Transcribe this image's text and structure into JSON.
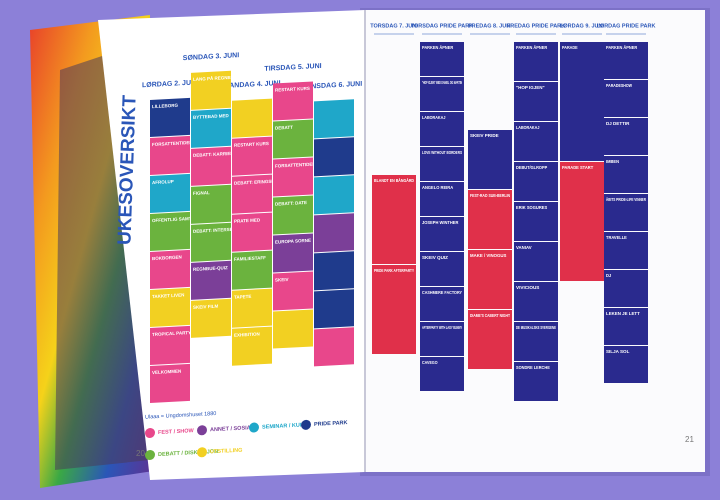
{
  "left": {
    "title": "UKESOVERSIKT",
    "page": "20",
    "days": [
      "LØRDAG 2. JUNI",
      "SØNDAG 3. JUNI",
      "MANDAG 4. JUNI",
      "TIRSDAG 5. JUNI",
      "ONSDAG 6. JUNI"
    ],
    "columns": [
      [
        {
          "label": "LILLEBORG",
          "color": "#1f3b8c"
        },
        {
          "label": "FORSATTENTIDER",
          "color": "#e8478b"
        },
        {
          "label": "AFROLUP",
          "color": "#1fa7c9"
        },
        {
          "label": "OFFENTLIG SAMTALE",
          "color": "#6bb33e"
        },
        {
          "label": "BOKBORGEN",
          "color": "#e8478b"
        },
        {
          "label": "TAKKET LIVEN",
          "color": "#f2d022"
        },
        {
          "label": "TROPICAL PARTY",
          "color": "#e8478b"
        },
        {
          "label": "VELKOMMEN",
          "color": "#e8478b"
        }
      ],
      [
        {
          "label": "LANG PÅ REGNBUEN",
          "color": "#f2d022"
        },
        {
          "label": "BYTTEBAD MED",
          "color": "#1fa7c9"
        },
        {
          "label": "DEBATT: KARRIERE",
          "color": "#e8478b"
        },
        {
          "label": "FIGNAL",
          "color": "#6bb33e"
        },
        {
          "label": "DEBATT: INTERSEX",
          "color": "#6bb33e"
        },
        {
          "label": "REGNBUE-QUIZ",
          "color": "#7b3f98"
        },
        {
          "label": "SKEIV FILM",
          "color": "#f2d022"
        }
      ],
      [
        {
          "label": "",
          "color": "#f2d022"
        },
        {
          "label": "RESTART KURS",
          "color": "#e8478b"
        },
        {
          "label": "DEBATT: ERINGSLIV",
          "color": "#e8478b"
        },
        {
          "label": "PRATE MED",
          "color": "#e8478b"
        },
        {
          "label": "FAMILIESTAFF",
          "color": "#6bb33e"
        },
        {
          "label": "TAPETE",
          "color": "#f2d022"
        },
        {
          "label": "EXHIBITION",
          "color": "#f2d022"
        }
      ],
      [
        {
          "label": "RESTART KURS",
          "color": "#e8478b"
        },
        {
          "label": "DEBATT",
          "color": "#6bb33e"
        },
        {
          "label": "FORSATTENTIDER",
          "color": "#e8478b"
        },
        {
          "label": "DEBATT: DATE",
          "color": "#6bb33e"
        },
        {
          "label": "EUROPA SORNE",
          "color": "#7b3f98"
        },
        {
          "label": "SKEIV",
          "color": "#e8478b"
        },
        {
          "label": "",
          "color": "#f2d022"
        }
      ],
      [
        {
          "label": "",
          "color": "#1fa7c9"
        },
        {
          "label": "",
          "color": "#1f3b8c"
        },
        {
          "label": "",
          "color": "#1fa7c9"
        },
        {
          "label": "",
          "color": "#7b3f98"
        },
        {
          "label": "",
          "color": "#1f3b8c"
        },
        {
          "label": "",
          "color": "#1f3b8c"
        },
        {
          "label": "",
          "color": "#e8478b"
        }
      ]
    ],
    "legend_note": "Ulaaa = Ungdomshuset 1880",
    "legend": [
      {
        "label": "FEST / SHOW",
        "color": "#e8478b"
      },
      {
        "label": "ANNET / SOSIALT",
        "color": "#7b3f98"
      },
      {
        "label": "SEMINAR / KURS",
        "color": "#1fa7c9"
      },
      {
        "label": "PRIDE PARK",
        "color": "#1f3b8c"
      },
      {
        "label": "DEBATT / DISKUS JON",
        "color": "#6bb33e"
      },
      {
        "label": "UTSTILLING",
        "color": "#f2d022"
      }
    ]
  },
  "right": {
    "page": "21",
    "columns": [
      {
        "day": "TORSDAG 7. JUNI",
        "events": [
          {
            "label": "BLANDT EN BÅNGÅRD",
            "color": "#e0304a"
          },
          {
            "label": "PRIDE PARK AFTERPARTY",
            "color": "#e0304a"
          }
        ]
      },
      {
        "day": "TORSDAG PRIDE PARK",
        "events": [
          {
            "label": "PARKEN ÅPNER",
            "color": "#2a2a8e"
          },
          {
            "label": "\"HOP IGJEN\" MED DANIEL OG MARTIN",
            "color": "#2a2a8e"
          },
          {
            "label": "LABORAKAJ",
            "color": "#2a2a8e"
          },
          {
            "label": "LOVE WITHOUT BORDERS",
            "color": "#2a2a8e"
          },
          {
            "label": "ANGELO REIRA",
            "color": "#2a2a8e"
          },
          {
            "label": "JOSEPH WINTHER",
            "color": "#2a2a8e"
          },
          {
            "label": "SKEIV QUIZ",
            "color": "#2a2a8e"
          },
          {
            "label": "CASHMERE FACTORY",
            "color": "#2a2a8e"
          },
          {
            "label": "AFTERPARTY WITH LADY BUNNY",
            "color": "#2a2a8e"
          },
          {
            "label": "CAVEGO",
            "color": "#2a2a8e"
          }
        ]
      },
      {
        "day": "FREDAG 8. JUNI",
        "events": [
          {
            "label": "SKEIV PRIDE",
            "color": "#2a2a8e"
          },
          {
            "label": "FEST-RAD SUB-BERLIN",
            "color": "#e0304a"
          },
          {
            "label": "MAKE / VINOGUS",
            "color": "#e0304a"
          },
          {
            "label": "DIAME'S CABERT NIGHT",
            "color": "#e0304a"
          }
        ]
      },
      {
        "day": "FREDAG PRIDE PARK",
        "events": [
          {
            "label": "PARKEN ÅPNER",
            "color": "#2a2a8e"
          },
          {
            "label": "\"HOP IGJEN\"",
            "color": "#2a2a8e"
          },
          {
            "label": "LABORAKAJ",
            "color": "#2a2a8e"
          },
          {
            "label": "DEBUT/GLROPP",
            "color": "#2a2a8e"
          },
          {
            "label": "ERIK SOGURES",
            "color": "#2a2a8e"
          },
          {
            "label": "VANIAV",
            "color": "#2a2a8e"
          },
          {
            "label": "VIVICIOUS",
            "color": "#2a2a8e"
          },
          {
            "label": "DE MUSIKALSKE SVERGENE",
            "color": "#2a2a8e"
          },
          {
            "label": "SONDRE LERCHE",
            "color": "#2a2a8e"
          }
        ]
      },
      {
        "day": "LØRDAG 9. JUNI",
        "events": [
          {
            "label": "PARADE",
            "color": "#2a2a8e"
          },
          {
            "label": "PARADE START",
            "color": "#e0304a"
          }
        ]
      },
      {
        "day": "LØRDAG PRIDE PARK",
        "events": [
          {
            "label": "PARKEN ÅPNER",
            "color": "#2a2a8e"
          },
          {
            "label": "PARADESHOW",
            "color": "#2a2a8e"
          },
          {
            "label": "DJ DETTIR",
            "color": "#2a2a8e"
          },
          {
            "label": "IMBEN",
            "color": "#2a2a8e"
          },
          {
            "label": "ÅBITS PRIDE-LIFE VINNER",
            "color": "#2a2a8e"
          },
          {
            "label": "TRAVELLE",
            "color": "#2a2a8e"
          },
          {
            "label": "DJ",
            "color": "#2a2a8e"
          },
          {
            "label": "LEKEN JE LETT",
            "color": "#2a2a8e"
          },
          {
            "label": "SILJA SOL",
            "color": "#2a2a8e"
          }
        ]
      }
    ]
  }
}
